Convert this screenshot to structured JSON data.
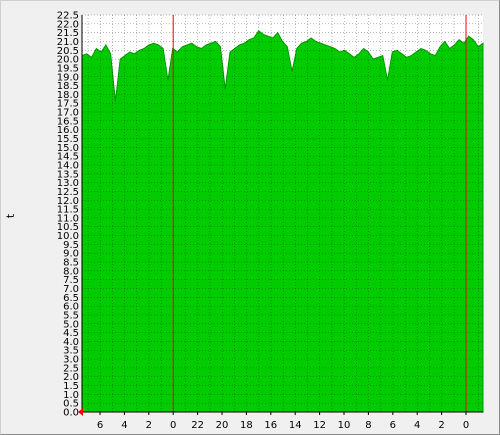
{
  "chart_data": {
    "type": "area",
    "ylabel": "t",
    "ylim": [
      0,
      22.5
    ],
    "ytick_step": 0.5,
    "xtick_labels": [
      "6",
      "4",
      "2",
      "0",
      "22",
      "20",
      "18",
      "16",
      "14",
      "12",
      "10",
      "8",
      "6",
      "4",
      "2",
      "0"
    ],
    "grid": true,
    "colors": {
      "fill": "#00cc00",
      "edge": "#009900",
      "plot_bg": "#ffffff",
      "grid": "#000000",
      "day_marker": "#ff0000",
      "arrow": "#ff0000"
    },
    "series": [
      {
        "values": [
          20.2,
          20.3,
          20.1,
          20.6,
          20.4,
          20.8,
          20.3,
          17.6,
          20.0,
          20.2,
          20.4,
          20.3,
          20.5,
          20.6,
          20.8,
          20.9,
          20.8,
          20.6,
          18.8,
          20.6,
          20.4,
          20.7,
          20.8,
          20.9,
          20.7,
          20.6,
          20.8,
          20.9,
          21.0,
          20.7,
          18.3,
          20.4,
          20.6,
          20.8,
          20.9,
          21.1,
          21.2,
          21.6,
          21.4,
          21.3,
          21.2,
          21.5,
          21.0,
          20.7,
          19.3,
          20.6,
          20.9,
          21.0,
          21.2,
          21.0,
          20.9,
          20.8,
          20.7,
          20.6,
          20.4,
          20.5,
          20.3,
          20.1,
          20.3,
          20.6,
          20.4,
          20.0,
          20.1,
          20.2,
          18.8,
          20.4,
          20.5,
          20.3,
          20.1,
          20.2,
          20.4,
          20.6,
          20.5,
          20.3,
          20.2,
          20.7,
          21.0,
          20.6,
          20.8,
          21.1,
          20.9,
          21.3,
          21.1,
          20.7,
          20.9
        ]
      }
    ]
  }
}
